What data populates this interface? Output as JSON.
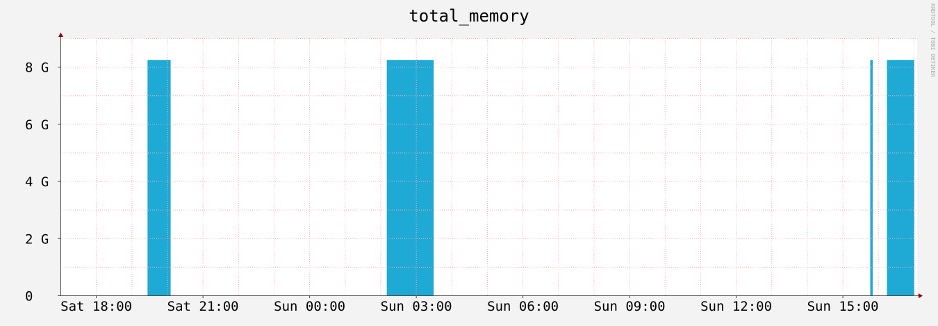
{
  "chart_data": {
    "type": "area",
    "title": "total_memory",
    "watermark": "RRDTOOL / TOBI OETIKER",
    "xlabel": "",
    "ylabel": "",
    "x_ticks": [
      "Sat 18:00",
      "Sat 21:00",
      "Sun 00:00",
      "Sun 03:00",
      "Sun 06:00",
      "Sun 09:00",
      "Sun 12:00",
      "Sun 15:00"
    ],
    "x_range_hours": [
      -1.0,
      23.1
    ],
    "y_ticks": [
      {
        "value": 0,
        "label": "0"
      },
      {
        "value": 2,
        "label": "2 G"
      },
      {
        "value": 4,
        "label": "4 G"
      },
      {
        "value": 6,
        "label": "6 G"
      },
      {
        "value": 8,
        "label": "8 G"
      }
    ],
    "ylim": [
      0,
      9
    ],
    "unit": "GB",
    "series": [
      {
        "color": "#1fa9d5",
        "segments": [
          {
            "start": 1.45,
            "end": 2.1,
            "value": 8.24
          },
          {
            "start": 8.18,
            "end": 9.5,
            "value": 8.24
          },
          {
            "start": 21.78,
            "end": 21.85,
            "value": 8.24
          },
          {
            "start": 22.25,
            "end": 24.0,
            "value": 8.24
          }
        ]
      }
    ],
    "grid": true,
    "colors": {
      "background": "#f3f3f3",
      "plot": "#ffffff",
      "grid": "#f0b4b4",
      "axis": "#8b0000",
      "series": "#1fa9d5"
    }
  }
}
